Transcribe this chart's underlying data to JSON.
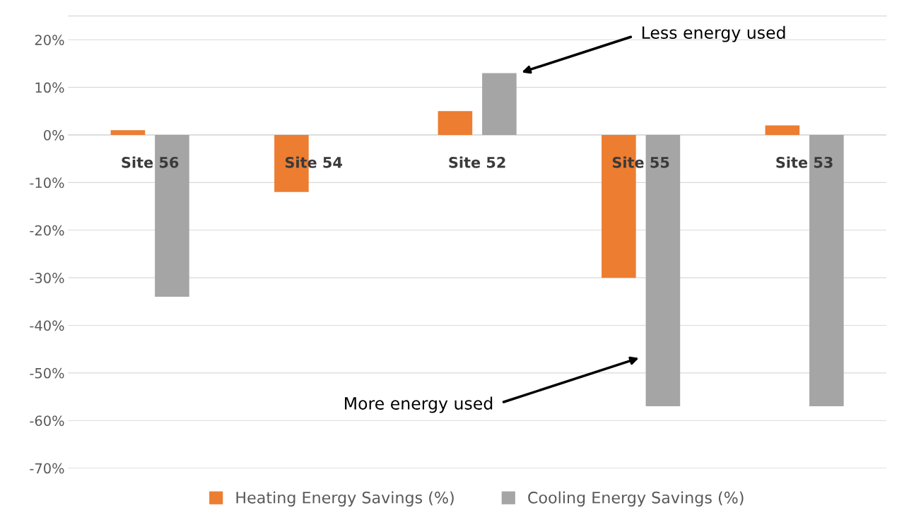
{
  "chart_data": {
    "type": "bar",
    "categories": [
      "Site 56",
      "Site 54",
      "Site 52",
      "Site 55",
      "Site 53"
    ],
    "series": [
      {
        "name": "Heating Energy Savings (%)",
        "color": "#ed7d31",
        "values": [
          1,
          -12,
          5,
          -30,
          2
        ]
      },
      {
        "name": "Cooling Energy Savings (%)",
        "color": "#a5a5a5",
        "values": [
          -34,
          null,
          13,
          -57,
          -57
        ]
      }
    ],
    "ylim": [
      -70,
      25
    ],
    "yticks": [
      {
        "value": -70,
        "label": "-70%"
      },
      {
        "value": -60,
        "label": "-60%"
      },
      {
        "value": -50,
        "label": "-50%"
      },
      {
        "value": -40,
        "label": "-40%"
      },
      {
        "value": -30,
        "label": "-30%"
      },
      {
        "value": -20,
        "label": "-20%"
      },
      {
        "value": -10,
        "label": "-10%"
      },
      {
        "value": 0,
        "label": "0%"
      },
      {
        "value": 10,
        "label": "10%"
      },
      {
        "value": 20,
        "label": "20%"
      }
    ],
    "grid": "y",
    "legend": "bottom",
    "annotations": [
      "Less energy used",
      "More energy used"
    ]
  }
}
